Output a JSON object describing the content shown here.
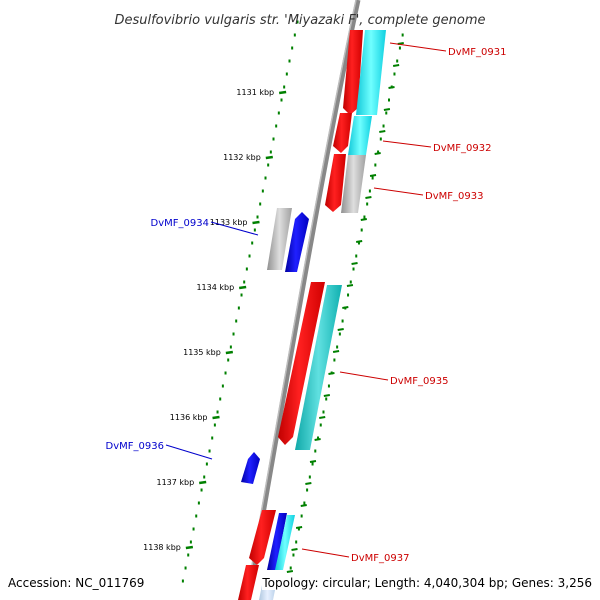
{
  "title": "Desulfovibrio vulgaris str. 'Miyazaki F', complete genome",
  "colors": {
    "forward_gene": "#ff0000",
    "reverse_gene": "#0000ee",
    "hypothetical_gene": "#b4b4b4",
    "forward_label": "#cc0000",
    "reverse_label": "#0000cc",
    "cyan_track": "#22e0e0",
    "teal_track": "#22c8c8",
    "tick_green": "#008000",
    "backbone": "#888888"
  },
  "ticks": [
    "1131 kbp",
    "1132 kbp",
    "1133 kbp",
    "1134 kbp",
    "1135 kbp",
    "1136 kbp",
    "1137 kbp",
    "1138 kbp"
  ],
  "genes": [
    {
      "label": "DvMF_0931",
      "strand": "forward"
    },
    {
      "label": "DvMF_0932",
      "strand": "forward"
    },
    {
      "label": "DvMF_0933",
      "strand": "forward"
    },
    {
      "label": "DvMF_0934",
      "strand": "reverse"
    },
    {
      "label": "DvMF_0935",
      "strand": "forward"
    },
    {
      "label": "DvMF_0936",
      "strand": "reverse"
    },
    {
      "label": "DvMF_0937",
      "strand": "forward"
    }
  ],
  "footer": {
    "accession": "Accession: NC_011769",
    "topology": "Topology: circular; Length: 4,040,304 bp; Genes: 3,256"
  }
}
